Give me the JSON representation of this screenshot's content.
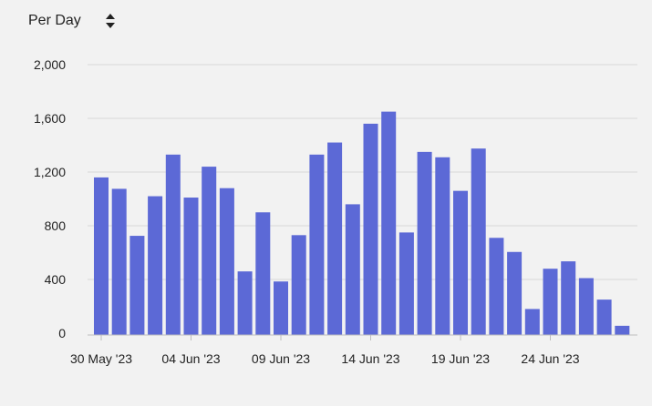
{
  "controls": {
    "period_label": "Per Day",
    "sort_icon": "sort-up-down-icon"
  },
  "colors": {
    "bar": "#5c69d6",
    "grid": "#d8d8d8",
    "background": "#f2f2f2"
  },
  "chart_data": {
    "type": "bar",
    "title": "",
    "xlabel": "",
    "ylabel": "",
    "ylim": [
      0,
      2000
    ],
    "y_ticks": [
      0,
      400,
      800,
      1200,
      1600,
      2000
    ],
    "y_tick_labels": [
      "0",
      "400",
      "800",
      "1,200",
      "1,600",
      "2,000"
    ],
    "x_tick_labels": [
      "30 May '23",
      "04 Jun '23",
      "09 Jun '23",
      "14 Jun '23",
      "19 Jun '23",
      "24 Jun '23"
    ],
    "x_tick_indices": [
      0,
      5,
      10,
      15,
      20,
      25
    ],
    "grid": true,
    "categories": [
      "30 May '23",
      "31 May '23",
      "01 Jun '23",
      "02 Jun '23",
      "03 Jun '23",
      "04 Jun '23",
      "05 Jun '23",
      "06 Jun '23",
      "07 Jun '23",
      "08 Jun '23",
      "09 Jun '23",
      "10 Jun '23",
      "11 Jun '23",
      "12 Jun '23",
      "13 Jun '23",
      "14 Jun '23",
      "15 Jun '23",
      "16 Jun '23",
      "17 Jun '23",
      "18 Jun '23",
      "19 Jun '23",
      "20 Jun '23",
      "21 Jun '23",
      "22 Jun '23",
      "23 Jun '23",
      "24 Jun '23",
      "25 Jun '23",
      "26 Jun '23",
      "27 Jun '23",
      "28 Jun '23"
    ],
    "values": [
      1160,
      1075,
      725,
      1020,
      1330,
      1010,
      1240,
      1080,
      460,
      900,
      385,
      730,
      1330,
      1420,
      960,
      1560,
      1650,
      750,
      1350,
      1310,
      1060,
      1375,
      710,
      605,
      180,
      480,
      535,
      410,
      250,
      55
    ]
  }
}
